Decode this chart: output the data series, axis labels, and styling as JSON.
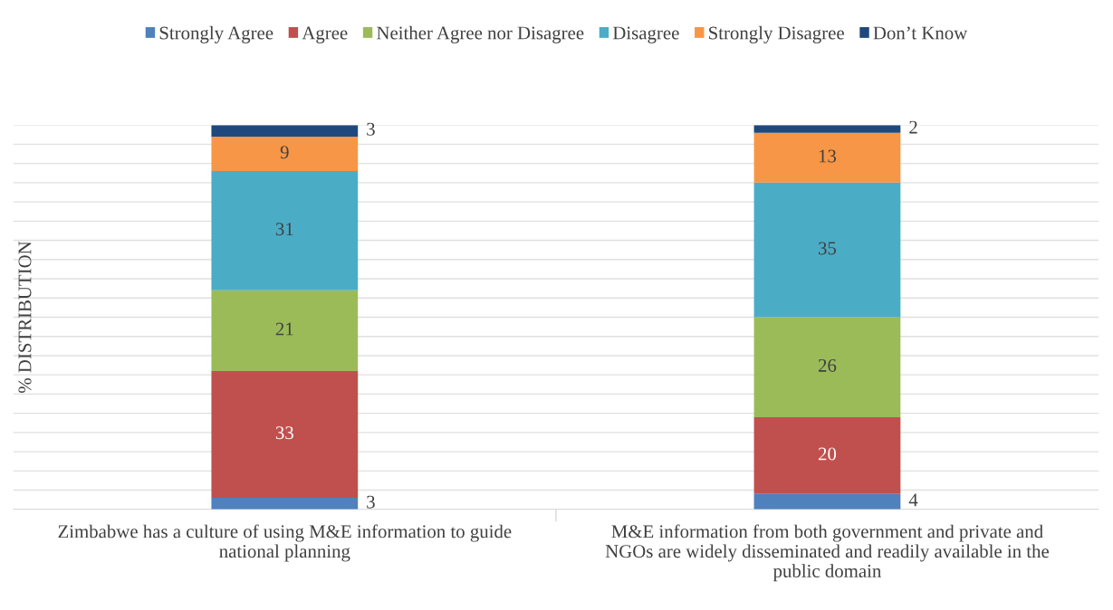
{
  "chart_data": {
    "type": "bar",
    "stacked": true,
    "ylabel": "% DISTRIBUTION",
    "categories": [
      "Zimbabwe has a culture of using M&E information to guide\nnational planning",
      "M&E information from both government and private and\nNGOs are widely disseminated and readily available in the\npublic domain"
    ],
    "series": [
      {
        "name": "Strongly Agree",
        "color": "#4f81bd",
        "values": [
          3,
          4
        ]
      },
      {
        "name": "Agree",
        "color": "#c0504d",
        "values": [
          33,
          20
        ]
      },
      {
        "name": "Neither Agree nor Disagree",
        "color": "#9bbb59",
        "values": [
          21,
          26
        ]
      },
      {
        "name": "Disagree",
        "color": "#4bacc6",
        "values": [
          31,
          35
        ]
      },
      {
        "name": "Strongly Disagree",
        "color": "#f79646",
        "values": [
          9,
          13
        ]
      },
      {
        "name": "Don’t Know",
        "color": "#1f497d",
        "values": [
          3,
          2
        ]
      }
    ],
    "data_labels": true,
    "legend": "top",
    "grid": "y",
    "tick_labels": "x"
  }
}
